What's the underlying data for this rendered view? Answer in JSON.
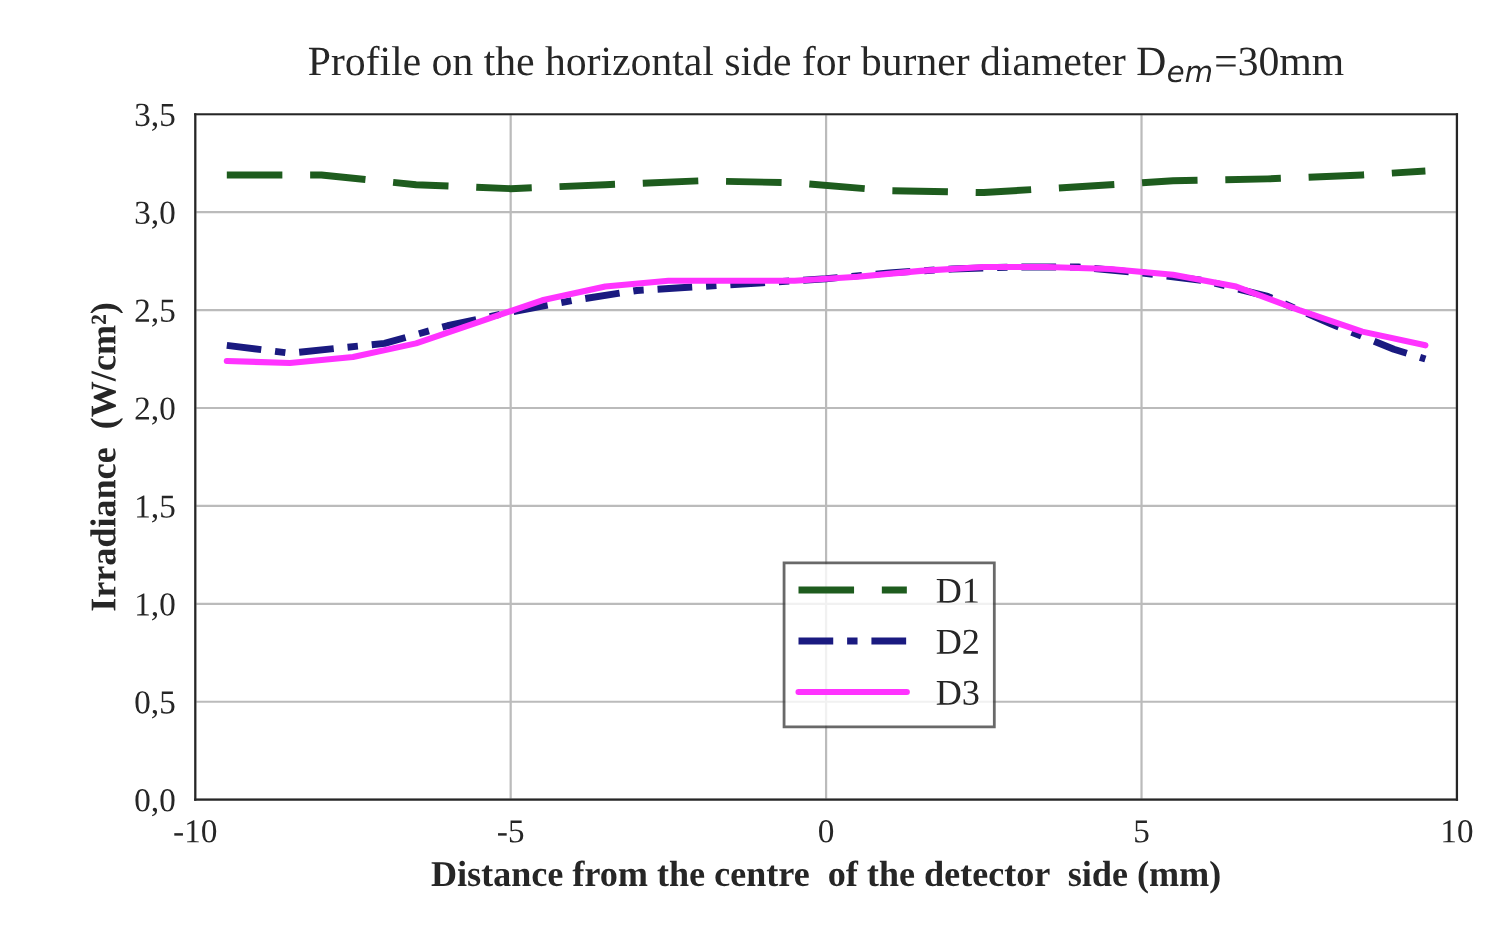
{
  "chart_data": {
    "type": "line",
    "title": "Profile on the horizontal side for burner diameter D$_{em}$=30mm",
    "xlabel": "Distance from the centre  of the detector  side (mm)",
    "ylabel": "Irradiance  (W/cm²)",
    "xlim": [
      -10,
      10
    ],
    "xticks": [
      -10,
      -5,
      0,
      5,
      10
    ],
    "ylim": [
      0,
      3.5
    ],
    "yticks": [
      {
        "value": 0,
        "label": "0,0"
      },
      {
        "value": 0.5,
        "label": "0,5"
      },
      {
        "value": 1,
        "label": "1,0"
      },
      {
        "value": 1.5,
        "label": "1,5"
      },
      {
        "value": 2,
        "label": "2,0"
      },
      {
        "value": 2.5,
        "label": "2,5"
      },
      {
        "value": 3,
        "label": "3,0"
      },
      {
        "value": 3.5,
        "label": "3,5"
      }
    ],
    "grid": true,
    "legend": "bottom",
    "series": [
      {
        "name": "D1",
        "color": "#1e5c1e",
        "line_style": "dashed",
        "x": [
          -9.5,
          -8,
          -6.5,
          -5,
          -3.5,
          -2,
          -0.5,
          1,
          2.5,
          4,
          5.5,
          7,
          8.5,
          9.5
        ],
        "values": [
          3.19,
          3.19,
          3.14,
          3.12,
          3.14,
          3.16,
          3.15,
          3.11,
          3.1,
          3.13,
          3.16,
          3.17,
          3.19,
          3.21
        ]
      },
      {
        "name": "D2",
        "color": "#1a1a80",
        "line_style": "dashdot",
        "x": [
          -9.5,
          -8.5,
          -7,
          -6,
          -5,
          -4,
          -3,
          -2,
          -1,
          0,
          1,
          2,
          3,
          4,
          5,
          6,
          7,
          8,
          9,
          9.5
        ],
        "values": [
          2.32,
          2.28,
          2.33,
          2.42,
          2.49,
          2.55,
          2.6,
          2.62,
          2.64,
          2.66,
          2.69,
          2.71,
          2.72,
          2.72,
          2.69,
          2.65,
          2.57,
          2.43,
          2.3,
          2.25
        ]
      },
      {
        "name": "D3",
        "color": "#ff33ff",
        "line_style": "solid",
        "x": [
          -9.5,
          -8.5,
          -7.5,
          -6.5,
          -5.5,
          -4.5,
          -3.5,
          -2.5,
          -1.5,
          -0.5,
          0.5,
          1.5,
          2.5,
          3.5,
          4.5,
          5.5,
          6.5,
          7.5,
          8.5,
          9.5
        ],
        "values": [
          2.24,
          2.23,
          2.26,
          2.33,
          2.44,
          2.55,
          2.62,
          2.65,
          2.65,
          2.65,
          2.67,
          2.7,
          2.72,
          2.72,
          2.71,
          2.68,
          2.62,
          2.5,
          2.39,
          2.32
        ]
      }
    ]
  }
}
